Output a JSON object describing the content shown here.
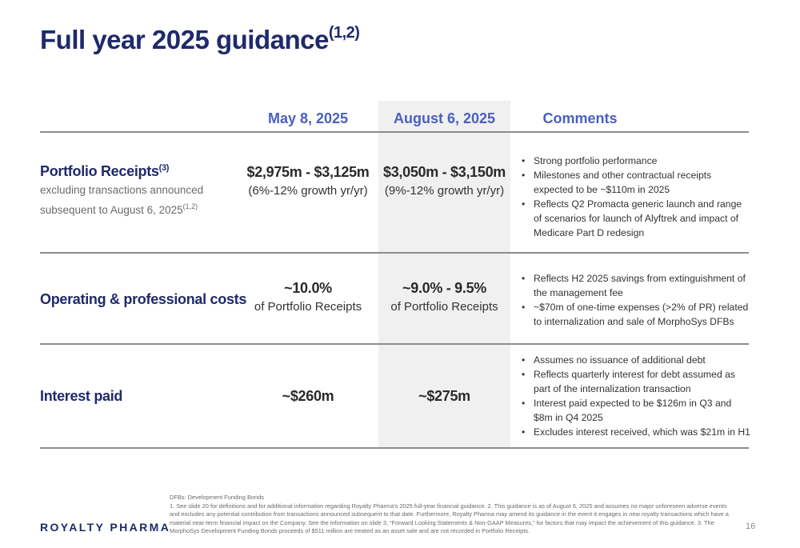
{
  "title": {
    "text": "Full year 2025 guidance",
    "sup": "(1,2)"
  },
  "columns": {
    "col1": "May 8, 2025",
    "col2": "August 6, 2025",
    "col3": "Comments"
  },
  "rows": [
    {
      "label": "Portfolio Receipts",
      "label_sup": "(3)",
      "sub_line1": "excluding transactions announced",
      "sub_line2": "subsequent to August 6, 2025",
      "sub_sup": "(1,2)",
      "may_big": "$2,975m - $3,125m",
      "may_small": "(6%-12% growth yr/yr)",
      "aug_big": "$3,050m - $3,150m",
      "aug_small": "(9%-12% growth yr/yr)",
      "comments": [
        "Strong portfolio performance",
        "Milestones and other contractual receipts expected to be ~$110m in 2025",
        "Reflects Q2 Promacta generic launch and range of scenarios for launch of Alyftrek and impact of Medicare Part D redesign"
      ]
    },
    {
      "label": "Operating & professional costs",
      "may_big": "~10.0%",
      "may_small": "of Portfolio Receipts",
      "aug_big": "~9.0% - 9.5%",
      "aug_small": "of Portfolio Receipts",
      "comments": [
        "Reflects H2 2025 savings from extinguishment of the management fee",
        "~$70m of one-time expenses (>2% of PR) related to internalization and sale of MorphoSys DFBs"
      ]
    },
    {
      "label": "Interest paid",
      "may_big": "~$260m",
      "aug_big": "~$275m",
      "comments": [
        "Assumes no issuance of additional debt",
        "Reflects quarterly interest for debt assumed as part of the internalization transaction",
        "Interest paid expected to be $126m in Q3 and $8m in Q4 2025",
        "Excludes interest received, which was $21m in H1"
      ]
    }
  ],
  "footer": {
    "logo": "ROYALTY PHARMA",
    "dfb": "DFBs: Development Funding Bonds",
    "notes": "1. See slide 20 for definitions and for additional information regarding Royalty Pharma’s 2025 full-year financial guidance. 2. This guidance is as of August 6, 2025 and assumes no major unforeseen adverse events and excludes any potential contribution from transactions announced subsequent to that date. Furthermore, Royalty Pharma may amend its guidance in the event it engages in new royalty transactions which have a material near-term financial impact on the Company. See the information on slide 3, “Forward Looking Statements & Non-GAAP Measures,” for factors that may impact the achievement of this guidance. 3. The MorphoSys Development Funding Bonds proceeds of $511 million are treated as an asset sale and are not recorded in Portfolio Receipts.",
    "page": "16"
  }
}
